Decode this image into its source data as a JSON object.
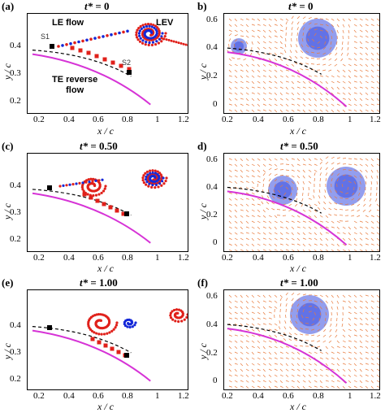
{
  "panels": {
    "a": {
      "label": "(a)",
      "time_var": "t*",
      "time_eq": " = 0"
    },
    "b": {
      "label": "b)",
      "time_var": "t*",
      "time_eq": " = 0"
    },
    "c": {
      "label": "(c)",
      "time_var": "t*",
      "time_eq": " = 0.50"
    },
    "d": {
      "label": "d)",
      "time_var": "t*",
      "time_eq": " = 0.50"
    },
    "e": {
      "label": "(e)",
      "time_var": "t*",
      "time_eq": " = 1.00"
    },
    "f": {
      "label": "(f)",
      "time_var": "t*",
      "time_eq": " = 1.00"
    }
  },
  "axes": {
    "x_label": "x / c",
    "y_label": "y / c",
    "x_ticks_left": [
      "0.2",
      "0.4",
      "0.6",
      "0.8",
      "1",
      "1.2"
    ],
    "x_ticks_right": [
      "0.2",
      "0.4",
      "0.6",
      "0.8",
      "1",
      "1.2"
    ],
    "y_ticks_left": [
      "0.2",
      "0.3",
      "0.4"
    ],
    "y_ticks_right": [
      "0",
      "0.2",
      "0.4",
      "0.6"
    ]
  },
  "annotations": {
    "le_flow": "LE flow",
    "lev": "LEV",
    "te_reverse_flow_1": "TE reverse",
    "te_reverse_flow_2": "flow",
    "s1": "S1",
    "s2": "S2"
  },
  "colors": {
    "airfoil": "#d633d6",
    "dashed": "#000000",
    "red_particles": "#e0201a",
    "blue_particles": "#1428d8",
    "vector_field": "#e87a3c",
    "vortex_blue": "#3a4fe0"
  }
}
